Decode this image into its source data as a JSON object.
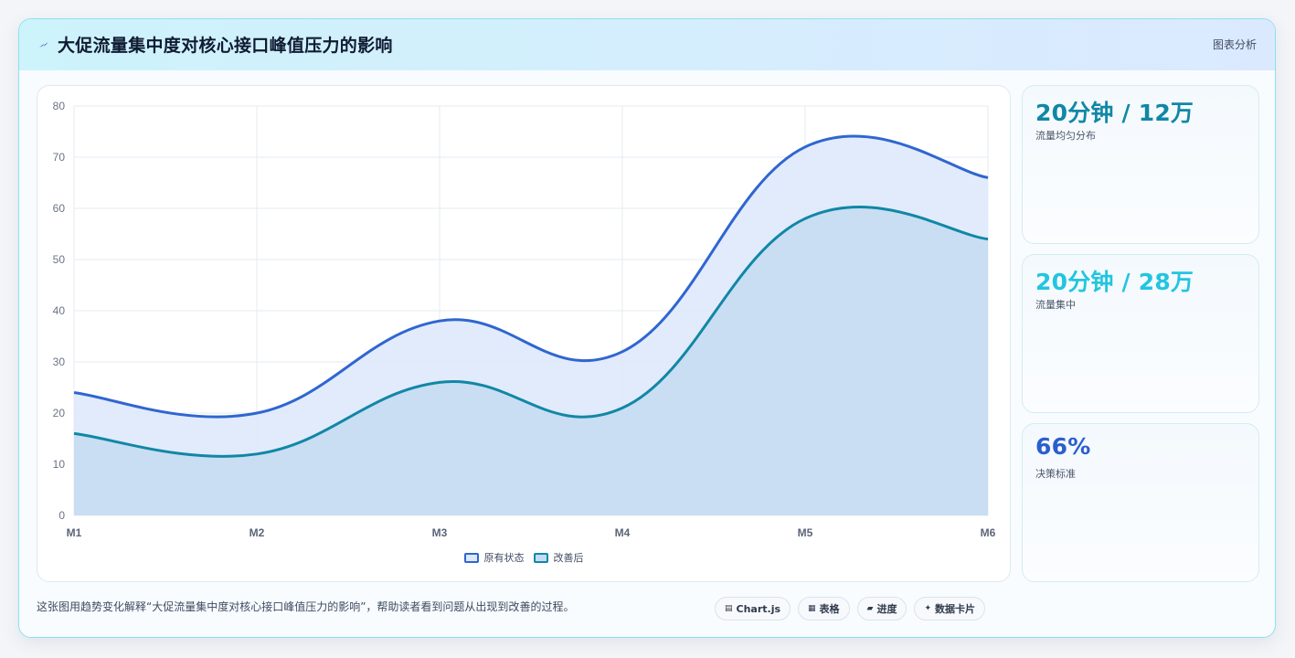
{
  "header": {
    "title": "大促流量集中度对核心接口峰值压力的影响",
    "tag": "图表分析",
    "icon": "lightning-icon"
  },
  "chart_data": {
    "type": "area",
    "categories": [
      "M1",
      "M2",
      "M3",
      "M4",
      "M5",
      "M6"
    ],
    "ylim": [
      0,
      80
    ],
    "yticks": [
      0,
      10,
      20,
      30,
      40,
      50,
      60,
      70,
      80
    ],
    "grid": true,
    "legend_position": "bottom",
    "series": [
      {
        "name": "原有状态",
        "values": [
          24,
          20,
          38,
          32,
          72,
          66
        ],
        "color": "#2f66d0",
        "fill": "#dde8fb"
      },
      {
        "name": "改善后",
        "values": [
          16,
          12,
          26,
          21,
          58,
          54
        ],
        "color": "#1187a6",
        "fill": "#c4dcf1"
      }
    ]
  },
  "stats": [
    {
      "value": "20分钟 / 12万",
      "label": "流量均匀分布",
      "color": "#1187a6"
    },
    {
      "value": "20分钟 / 28万",
      "label": "流量集中",
      "color": "#22c5e0"
    },
    {
      "value": "66%",
      "label": "决策标准",
      "color": "#2a5fce"
    }
  ],
  "footer": {
    "text": "这张图用趋势变化解释“大促流量集中度对核心接口峰值压力的影响”，帮助读者看到问题从出现到改善的过程。"
  },
  "chips": [
    {
      "icon": "chart-icon",
      "glyph": "▤",
      "label": "Chart.js"
    },
    {
      "icon": "table-icon",
      "glyph": "▦",
      "label": "表格"
    },
    {
      "icon": "progress-icon",
      "glyph": "▰",
      "label": "进度"
    },
    {
      "icon": "sparkle-icon",
      "glyph": "✦",
      "label": "数据卡片"
    }
  ]
}
